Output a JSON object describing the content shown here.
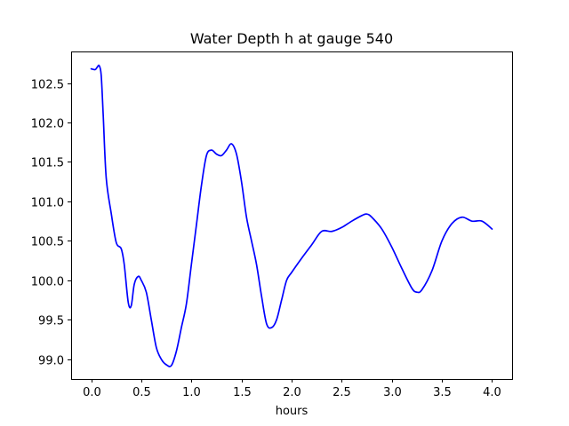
{
  "chart_data": {
    "type": "line",
    "title": "Water Depth h at gauge 540",
    "xlabel": "hours",
    "ylabel": "",
    "xlim": [
      -0.2,
      4.2
    ],
    "ylim": [
      98.75,
      102.9
    ],
    "xticks": [
      0.0,
      0.5,
      1.0,
      1.5,
      2.0,
      2.5,
      3.0,
      3.5,
      4.0
    ],
    "xtick_labels": [
      "0.0",
      "0.5",
      "1.0",
      "1.5",
      "2.0",
      "2.5",
      "3.0",
      "3.5",
      "4.0"
    ],
    "yticks": [
      99.0,
      99.5,
      100.0,
      100.5,
      101.0,
      101.5,
      102.0,
      102.5
    ],
    "ytick_labels": [
      "99.0",
      "99.5",
      "100.0",
      "100.5",
      "101.0",
      "101.5",
      "102.0",
      "102.5"
    ],
    "grid": false,
    "series": [
      {
        "color": "#0000ff",
        "x": [
          0.0,
          0.04,
          0.06,
          0.08,
          0.1,
          0.12,
          0.15,
          0.2,
          0.25,
          0.3,
          0.33,
          0.37,
          0.4,
          0.43,
          0.47,
          0.5,
          0.55,
          0.6,
          0.65,
          0.7,
          0.75,
          0.8,
          0.85,
          0.9,
          0.95,
          1.0,
          1.05,
          1.1,
          1.15,
          1.2,
          1.25,
          1.3,
          1.35,
          1.4,
          1.45,
          1.5,
          1.55,
          1.6,
          1.65,
          1.7,
          1.75,
          1.8,
          1.85,
          1.9,
          1.95,
          2.0,
          2.1,
          2.2,
          2.3,
          2.4,
          2.5,
          2.6,
          2.7,
          2.75,
          2.8,
          2.9,
          3.0,
          3.1,
          3.2,
          3.25,
          3.3,
          3.4,
          3.5,
          3.6,
          3.7,
          3.8,
          3.9,
          4.0
        ],
        "y": [
          102.68,
          102.67,
          102.7,
          102.72,
          102.6,
          102.1,
          101.3,
          100.85,
          100.48,
          100.4,
          100.2,
          99.72,
          99.68,
          99.95,
          100.05,
          100.0,
          99.85,
          99.5,
          99.15,
          99.0,
          98.93,
          98.92,
          99.1,
          99.4,
          99.7,
          100.2,
          100.7,
          101.2,
          101.58,
          101.65,
          101.6,
          101.58,
          101.65,
          101.73,
          101.6,
          101.25,
          100.8,
          100.5,
          100.2,
          99.8,
          99.45,
          99.4,
          99.5,
          99.75,
          100.0,
          100.1,
          100.28,
          100.45,
          100.62,
          100.62,
          100.67,
          100.75,
          100.82,
          100.84,
          100.8,
          100.65,
          100.42,
          100.15,
          99.9,
          99.85,
          99.88,
          100.12,
          100.5,
          100.72,
          100.8,
          100.75,
          100.75,
          100.65
        ]
      }
    ]
  }
}
